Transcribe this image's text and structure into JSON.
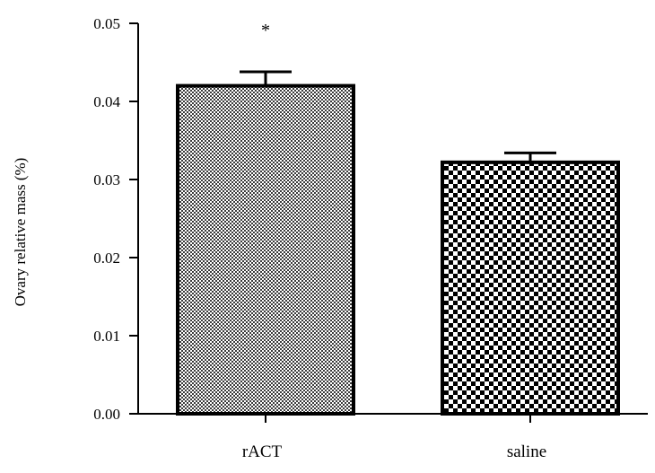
{
  "chart_data": {
    "type": "bar",
    "title": "",
    "xlabel": "",
    "ylabel": "Ovary relative mass (%)",
    "categories": [
      "rACT",
      "saline"
    ],
    "values": [
      0.042,
      0.0322
    ],
    "errors": [
      0.0018,
      0.0012
    ],
    "annotations": [
      {
        "category": "rACT",
        "text": "*"
      }
    ],
    "ylim": [
      0,
      0.05
    ],
    "yticks": [
      "0.00",
      "0.01",
      "0.02",
      "0.03",
      "0.04",
      "0.05"
    ],
    "grid": false,
    "legend": "none",
    "fills": [
      "horizontal-dense-dots",
      "checkerboard"
    ],
    "colors": {
      "ink": "#000000",
      "background": "#ffffff",
      "dots": "#3a3a3a"
    }
  }
}
